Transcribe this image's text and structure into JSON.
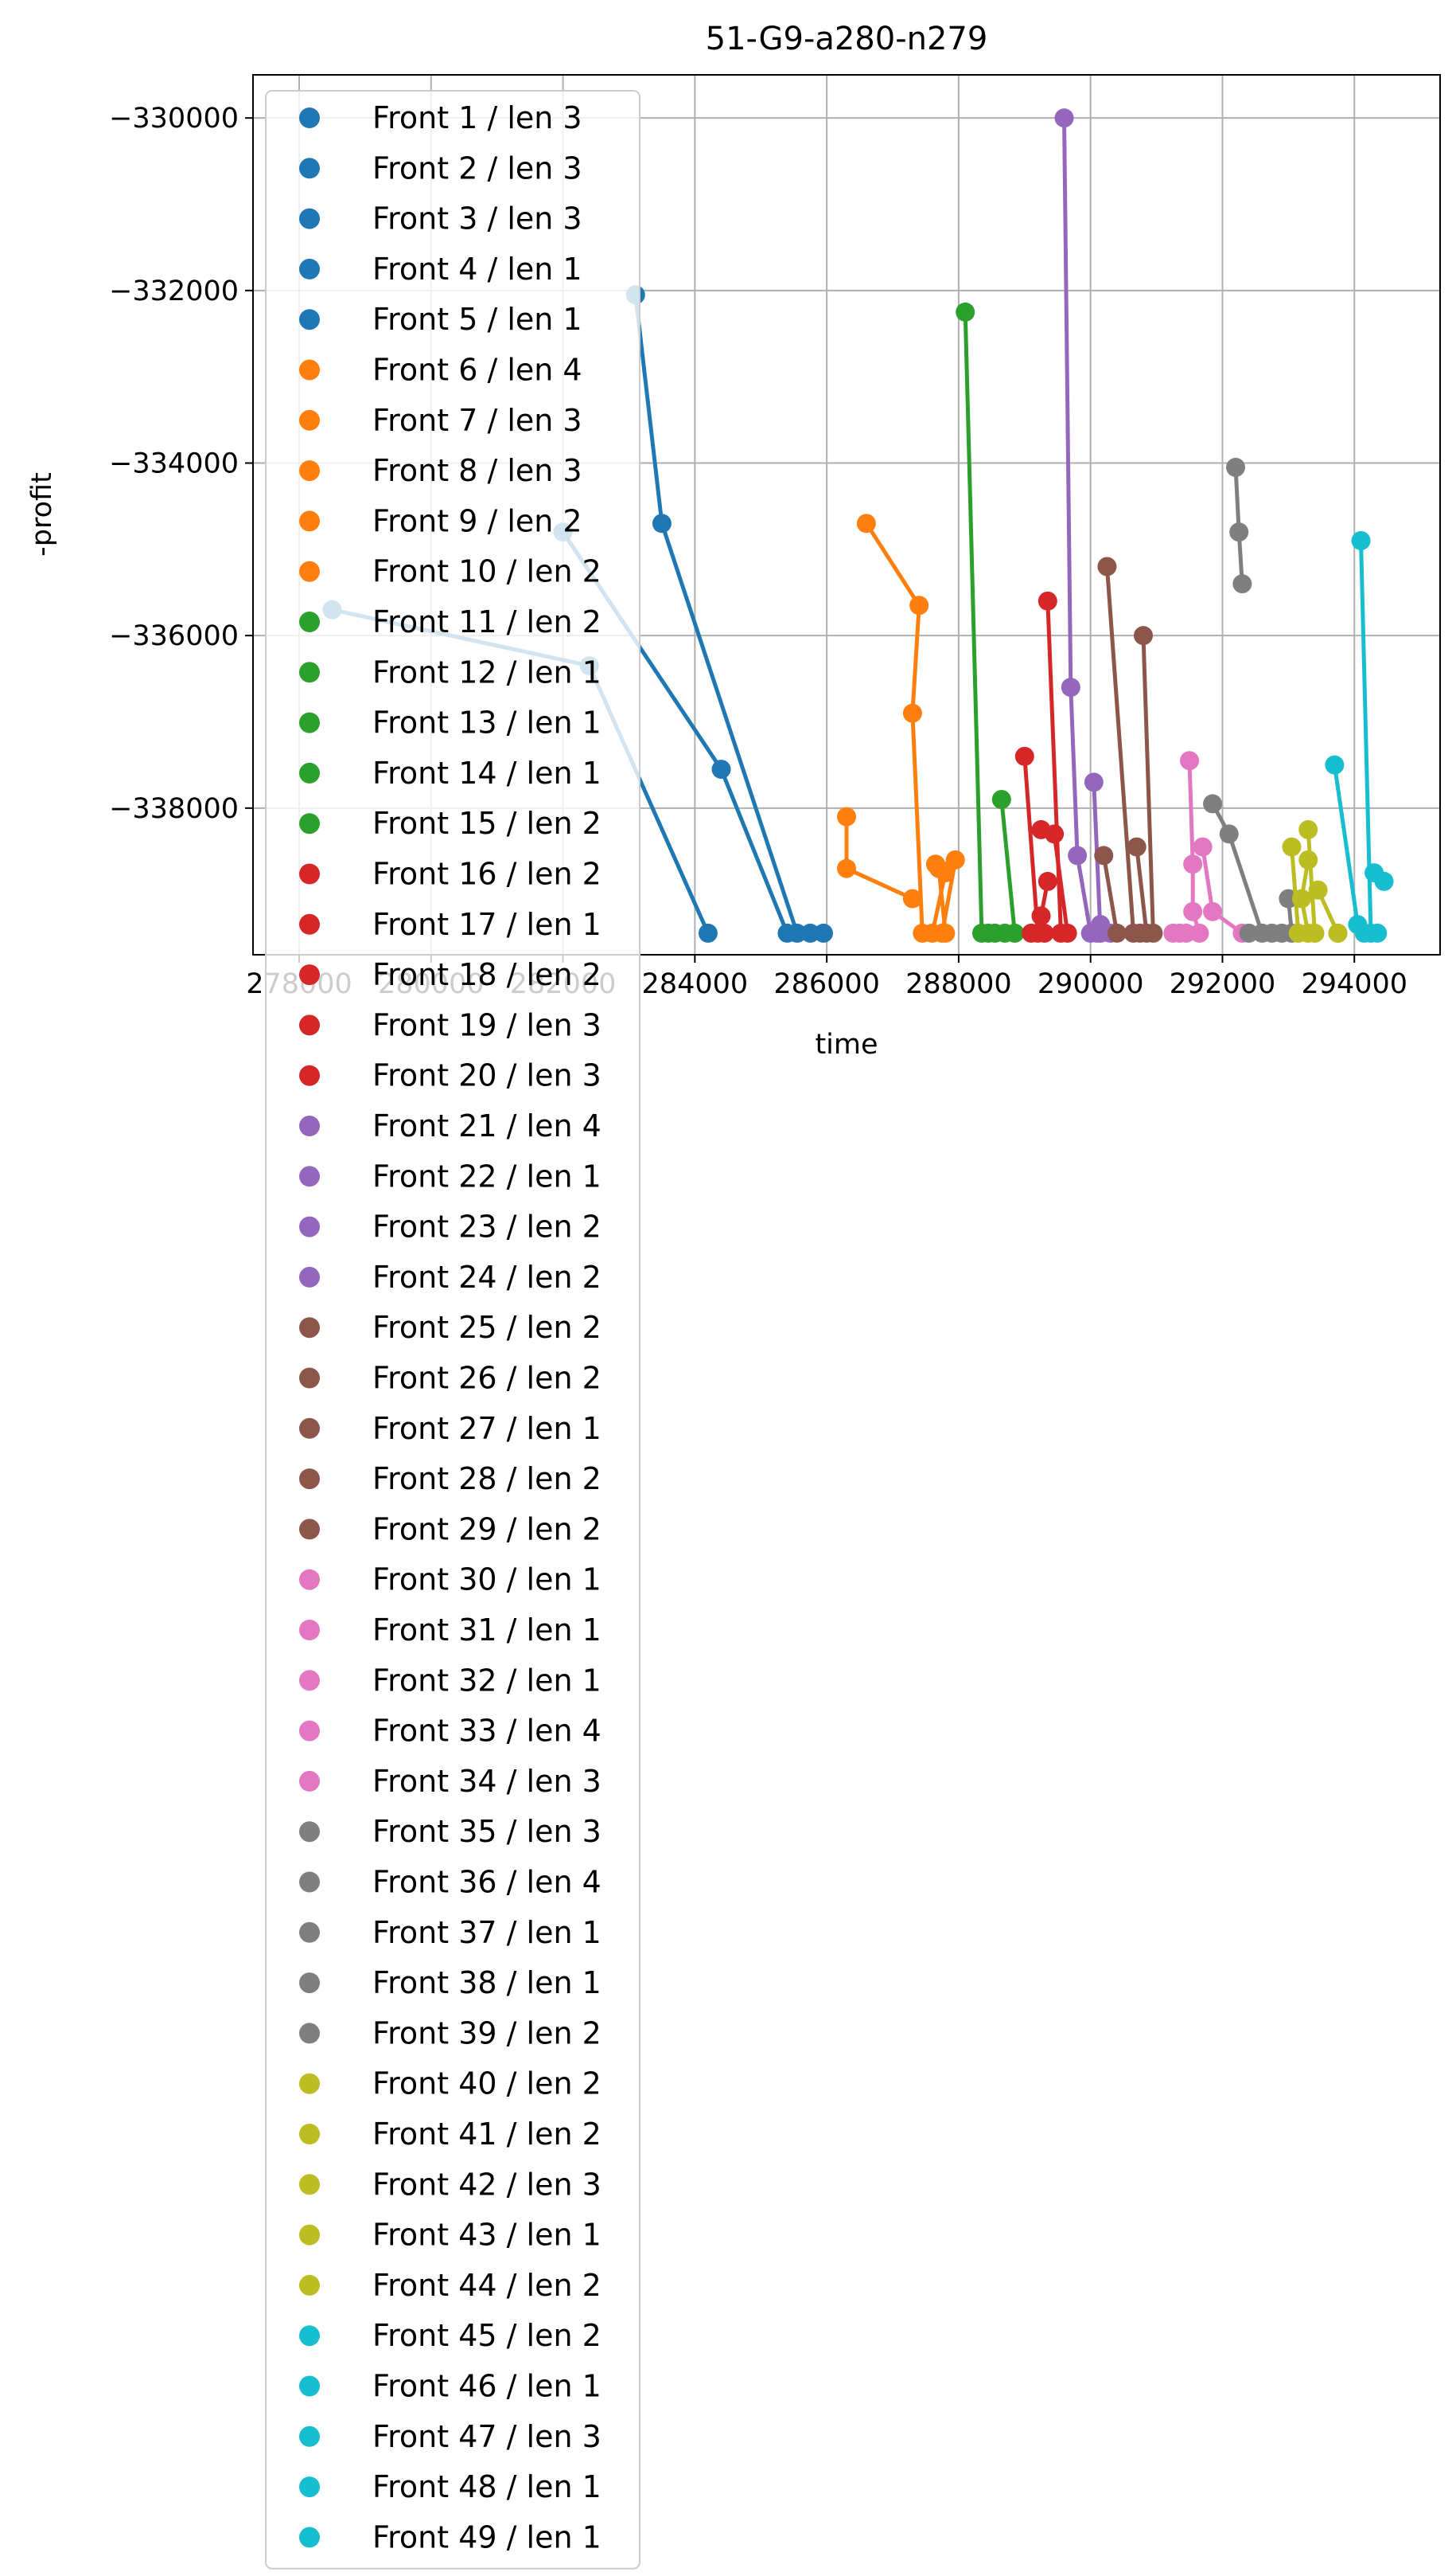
{
  "chart_data": {
    "type": "line",
    "title": "51-G9-a280-n279",
    "xlabel": "time",
    "ylabel": "-profit",
    "xlim": [
      277300,
      295300
    ],
    "ylim": [
      -339700,
      -329500
    ],
    "xticks": [
      278000,
      280000,
      282000,
      284000,
      286000,
      288000,
      290000,
      292000,
      294000
    ],
    "xtick_labels": [
      "278000",
      "280000",
      "282000",
      "284000",
      "286000",
      "288000",
      "290000",
      "292000",
      "294000"
    ],
    "yticks": [
      -330000,
      -332000,
      -334000,
      -336000,
      -338000
    ],
    "ytick_labels": [
      "−330000",
      "−332000",
      "−334000",
      "−336000",
      "−338000"
    ],
    "grid": true,
    "legend_position": "upper left",
    "series": [
      {
        "name": "Front 1 / len 3",
        "color": "#1f77b4",
        "points": [
          [
            278500,
            -335700
          ],
          [
            282400,
            -336350
          ],
          [
            284200,
            -339450
          ]
        ]
      },
      {
        "name": "Front 2 / len 3",
        "color": "#1f77b4",
        "points": [
          [
            282000,
            -334800
          ],
          [
            284400,
            -337550
          ],
          [
            285400,
            -339450
          ]
        ]
      },
      {
        "name": "Front 3 / len 3",
        "color": "#1f77b4",
        "points": [
          [
            283100,
            -332050
          ],
          [
            283500,
            -334700
          ],
          [
            285550,
            -339450
          ]
        ]
      },
      {
        "name": "Front 4 / len 1",
        "color": "#1f77b4",
        "points": [
          [
            285750,
            -339450
          ]
        ]
      },
      {
        "name": "Front 5 / len 1",
        "color": "#1f77b4",
        "points": [
          [
            285950,
            -339450
          ]
        ]
      },
      {
        "name": "Front 6 / len 4",
        "color": "#ff7f0e",
        "points": [
          [
            286600,
            -334700
          ],
          [
            287400,
            -335650
          ],
          [
            287300,
            -336900
          ],
          [
            287450,
            -339450
          ]
        ]
      },
      {
        "name": "Front 7 / len 3",
        "color": "#ff7f0e",
        "points": [
          [
            286300,
            -338100
          ],
          [
            286300,
            -338700
          ],
          [
            287300,
            -339050
          ]
        ]
      },
      {
        "name": "Front 8 / len 3",
        "color": "#ff7f0e",
        "points": [
          [
            287650,
            -338650
          ],
          [
            287800,
            -338750
          ],
          [
            287600,
            -339450
          ]
        ]
      },
      {
        "name": "Front 9 / len 2",
        "color": "#ff7f0e",
        "points": [
          [
            287950,
            -338600
          ],
          [
            287750,
            -339450
          ]
        ]
      },
      {
        "name": "Front 10 / len 2",
        "color": "#ff7f0e",
        "points": [
          [
            287700,
            -338700
          ],
          [
            287800,
            -339450
          ]
        ]
      },
      {
        "name": "Front 11 / len 2",
        "color": "#2ca02c",
        "points": [
          [
            288100,
            -332250
          ],
          [
            288350,
            -339450
          ]
        ]
      },
      {
        "name": "Front 12 / len 1",
        "color": "#2ca02c",
        "points": [
          [
            288450,
            -339450
          ]
        ]
      },
      {
        "name": "Front 13 / len 1",
        "color": "#2ca02c",
        "points": [
          [
            288550,
            -339450
          ]
        ]
      },
      {
        "name": "Front 14 / len 1",
        "color": "#2ca02c",
        "points": [
          [
            288700,
            -339450
          ]
        ]
      },
      {
        "name": "Front 15 / len 2",
        "color": "#2ca02c",
        "points": [
          [
            288650,
            -337900
          ],
          [
            288850,
            -339450
          ]
        ]
      },
      {
        "name": "Front 16 / len 2",
        "color": "#d62728",
        "points": [
          [
            289350,
            -335600
          ],
          [
            289550,
            -339450
          ]
        ]
      },
      {
        "name": "Front 17 / len 1",
        "color": "#d62728",
        "points": [
          [
            289100,
            -339450
          ]
        ]
      },
      {
        "name": "Front 18 / len 2",
        "color": "#d62728",
        "points": [
          [
            289000,
            -337400
          ],
          [
            289200,
            -339450
          ]
        ]
      },
      {
        "name": "Front 19 / len 3",
        "color": "#d62728",
        "points": [
          [
            289250,
            -338250
          ],
          [
            289450,
            -338300
          ],
          [
            289650,
            -339450
          ]
        ]
      },
      {
        "name": "Front 20 / len 3",
        "color": "#d62728",
        "points": [
          [
            289350,
            -338850
          ],
          [
            289250,
            -339250
          ],
          [
            289300,
            -339450
          ]
        ]
      },
      {
        "name": "Front 21 / len 4",
        "color": "#9467bd",
        "points": [
          [
            289600,
            -330000
          ],
          [
            289700,
            -336600
          ],
          [
            289800,
            -338550
          ],
          [
            290000,
            -339450
          ]
        ]
      },
      {
        "name": "Front 22 / len 1",
        "color": "#9467bd",
        "points": [
          [
            290100,
            -339450
          ]
        ]
      },
      {
        "name": "Front 23 / len 2",
        "color": "#9467bd",
        "points": [
          [
            290050,
            -337700
          ],
          [
            290150,
            -339450
          ]
        ]
      },
      {
        "name": "Front 24 / len 2",
        "color": "#9467bd",
        "points": [
          [
            290150,
            -339350
          ],
          [
            290300,
            -339450
          ]
        ]
      },
      {
        "name": "Front 25 / len 2",
        "color": "#8c564b",
        "points": [
          [
            290250,
            -335200
          ],
          [
            290650,
            -339450
          ]
        ]
      },
      {
        "name": "Front 26 / len 2",
        "color": "#8c564b",
        "points": [
          [
            290200,
            -338550
          ],
          [
            290400,
            -339450
          ]
        ]
      },
      {
        "name": "Front 27 / len 1",
        "color": "#8c564b",
        "points": [
          [
            290750,
            -339450
          ]
        ]
      },
      {
        "name": "Front 28 / len 2",
        "color": "#8c564b",
        "points": [
          [
            290800,
            -336000
          ],
          [
            290950,
            -339450
          ]
        ]
      },
      {
        "name": "Front 29 / len 2",
        "color": "#8c564b",
        "points": [
          [
            290700,
            -338450
          ],
          [
            290850,
            -339450
          ]
        ]
      },
      {
        "name": "Front 30 / len 1",
        "color": "#e377c2",
        "points": [
          [
            291250,
            -339450
          ]
        ]
      },
      {
        "name": "Front 31 / len 1",
        "color": "#e377c2",
        "points": [
          [
            291350,
            -339450
          ]
        ]
      },
      {
        "name": "Front 32 / len 1",
        "color": "#e377c2",
        "points": [
          [
            291450,
            -339450
          ]
        ]
      },
      {
        "name": "Front 33 / len 4",
        "color": "#e377c2",
        "points": [
          [
            291500,
            -337450
          ],
          [
            291550,
            -338650
          ],
          [
            291550,
            -339200
          ],
          [
            291650,
            -339450
          ]
        ]
      },
      {
        "name": "Front 34 / len 3",
        "color": "#e377c2",
        "points": [
          [
            291700,
            -338450
          ],
          [
            291850,
            -339200
          ],
          [
            292300,
            -339450
          ]
        ]
      },
      {
        "name": "Front 35 / len 3",
        "color": "#7f7f7f",
        "points": [
          [
            292200,
            -334050
          ],
          [
            292250,
            -334800
          ],
          [
            292300,
            -335400
          ]
        ]
      },
      {
        "name": "Front 36 / len 4",
        "color": "#7f7f7f",
        "points": [
          [
            291850,
            -337950
          ],
          [
            292100,
            -338300
          ],
          [
            292600,
            -339450
          ],
          [
            292400,
            -339450
          ]
        ]
      },
      {
        "name": "Front 37 / len 1",
        "color": "#7f7f7f",
        "points": [
          [
            292750,
            -339450
          ]
        ]
      },
      {
        "name": "Front 38 / len 1",
        "color": "#7f7f7f",
        "points": [
          [
            292900,
            -339450
          ]
        ]
      },
      {
        "name": "Front 39 / len 2",
        "color": "#7f7f7f",
        "points": [
          [
            293000,
            -339050
          ],
          [
            293050,
            -339450
          ]
        ]
      },
      {
        "name": "Front 40 / len 2",
        "color": "#bcbd22",
        "points": [
          [
            293050,
            -338450
          ],
          [
            293150,
            -339450
          ]
        ]
      },
      {
        "name": "Front 41 / len 2",
        "color": "#bcbd22",
        "points": [
          [
            293300,
            -338250
          ],
          [
            293400,
            -339450
          ]
        ]
      },
      {
        "name": "Front 42 / len 3",
        "color": "#bcbd22",
        "points": [
          [
            293300,
            -338600
          ],
          [
            293200,
            -339050
          ],
          [
            293300,
            -339450
          ]
        ]
      },
      {
        "name": "Front 43 / len 1",
        "color": "#bcbd22",
        "points": [
          [
            293750,
            -339450
          ]
        ]
      },
      {
        "name": "Front 44 / len 2",
        "color": "#bcbd22",
        "points": [
          [
            293450,
            -338950
          ],
          [
            293750,
            -339450
          ]
        ]
      },
      {
        "name": "Front 45 / len 2",
        "color": "#17becf",
        "points": [
          [
            294100,
            -334900
          ],
          [
            294250,
            -339450
          ]
        ]
      },
      {
        "name": "Front 46 / len 1",
        "color": "#17becf",
        "points": [
          [
            294150,
            -339450
          ]
        ]
      },
      {
        "name": "Front 47 / len 3",
        "color": "#17becf",
        "points": [
          [
            293700,
            -337500
          ],
          [
            294050,
            -339350
          ],
          [
            294350,
            -339450
          ]
        ]
      },
      {
        "name": "Front 48 / len 1",
        "color": "#17becf",
        "points": [
          [
            294300,
            -338750
          ]
        ]
      },
      {
        "name": "Front 49 / len 1",
        "color": "#17becf",
        "points": [
          [
            294450,
            -338850
          ]
        ]
      }
    ]
  }
}
